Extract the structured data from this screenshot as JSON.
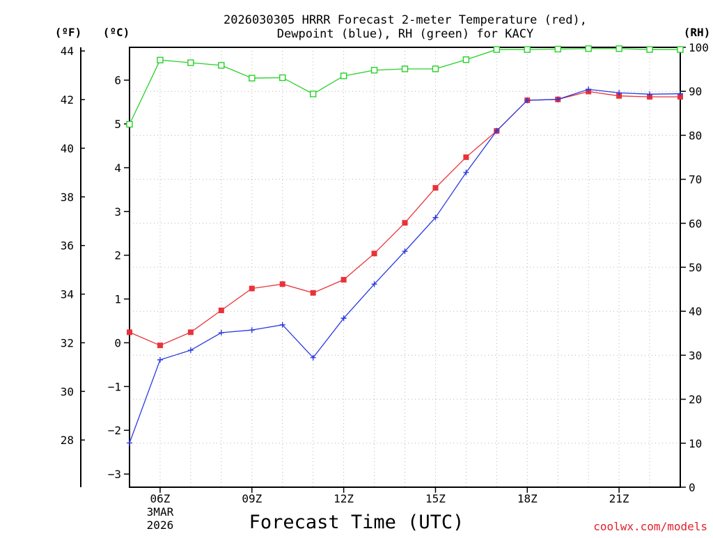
{
  "chart_data": {
    "type": "line",
    "title_line1": "2026030305 HRRR Forecast 2-meter Temperature (red),",
    "title_line2": "Dewpoint (blue), RH (green) for KACY",
    "xlabel": "Forecast Time (UTC)",
    "credit": "coolwx.com/models",
    "units": {
      "fahrenheit": "(ºF)",
      "celsius": "(ºC)",
      "rh": "(RH)"
    },
    "x_hours": [
      5,
      6,
      7,
      8,
      9,
      10,
      11,
      12,
      13,
      14,
      15,
      16,
      17,
      18,
      19,
      20,
      21,
      22,
      23
    ],
    "xlim": [
      5,
      23
    ],
    "x_ticks": [
      {
        "hour": 6,
        "label": "06Z",
        "sub1": "3MAR",
        "sub2": "2026"
      },
      {
        "hour": 9,
        "label": "09Z"
      },
      {
        "hour": 12,
        "label": "12Z"
      },
      {
        "hour": 15,
        "label": "15Z"
      },
      {
        "hour": 18,
        "label": "18Z"
      },
      {
        "hour": 21,
        "label": "21Z"
      }
    ],
    "celsius_axis": {
      "ylim": [
        -3.3,
        6.75
      ],
      "ticks": [
        -3,
        -2,
        -1,
        0,
        1,
        2,
        3,
        4,
        5,
        6
      ]
    },
    "fahrenheit_axis": {
      "ticks": [
        28,
        30,
        32,
        34,
        36,
        38,
        40,
        42,
        44
      ]
    },
    "rh_axis": {
      "ylim": [
        0,
        100
      ],
      "ticks": [
        0,
        10,
        20,
        30,
        40,
        50,
        60,
        70,
        80,
        90,
        100
      ]
    },
    "series": [
      {
        "name": "Temperature",
        "unit": "C",
        "color": "#e8323a",
        "marker": "filled-square",
        "values": [
          0.24,
          -0.06,
          0.24,
          0.74,
          1.24,
          1.34,
          1.14,
          1.44,
          2.04,
          2.74,
          3.54,
          4.24,
          4.84,
          5.54,
          5.56,
          5.74,
          5.64,
          5.62,
          5.62
        ]
      },
      {
        "name": "Dewpoint",
        "unit": "C",
        "color": "#2a3ae0",
        "marker": "plus",
        "values": [
          -2.29,
          -0.39,
          -0.17,
          0.23,
          0.29,
          0.41,
          -0.34,
          0.56,
          1.34,
          2.09,
          2.86,
          3.89,
          4.84,
          5.54,
          5.56,
          5.79,
          5.71,
          5.68,
          5.69
        ]
      },
      {
        "name": "RH",
        "unit": "%",
        "color": "#27d027",
        "marker": "open-square",
        "values": [
          82.5,
          97.1,
          96.5,
          95.9,
          93.0,
          93.1,
          89.4,
          93.5,
          94.8,
          95.1,
          95.1,
          97.2,
          99.5,
          99.5,
          99.6,
          99.7,
          99.7,
          99.5,
          99.5
        ]
      }
    ]
  }
}
